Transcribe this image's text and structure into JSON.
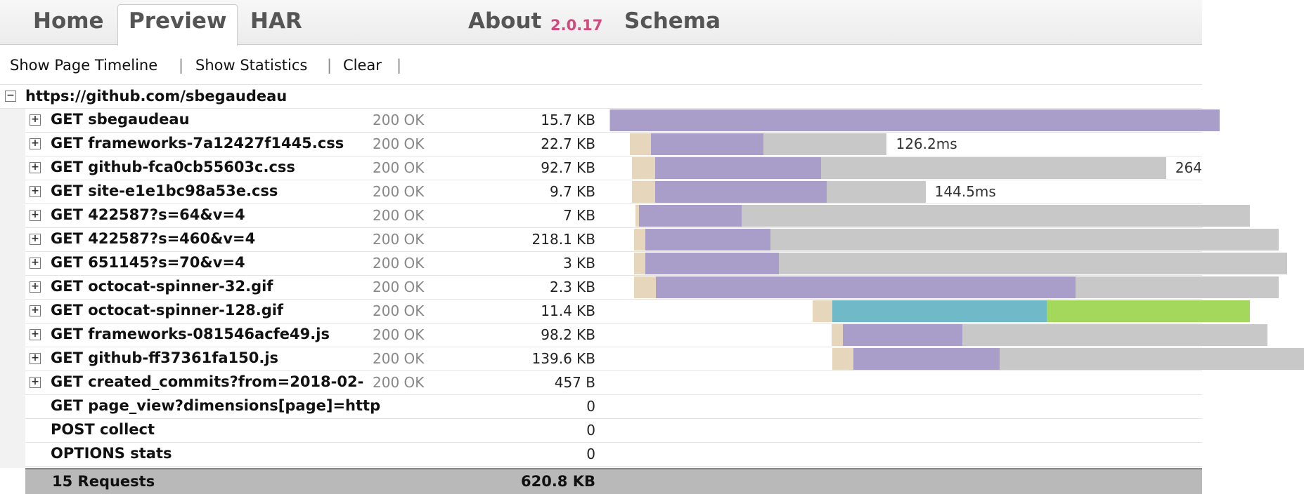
{
  "tabs": [
    "Home",
    "Preview",
    "HAR",
    "About",
    "Schema"
  ],
  "version": "2.0.17",
  "toolbar": {
    "items": [
      "Show Page Timeline",
      "Show Statistics",
      "Clear"
    ],
    "separator": "|"
  },
  "page": {
    "title": "https://github.com/sbegaudeau",
    "requests": [
      {
        "label": "GET sbegaudeau",
        "status": "200 OK",
        "size": "15.7 KB",
        "expandable": true,
        "start": 0,
        "bars": [
          {
            "color": "#e6d6bb",
            "value": 0.4
          },
          {
            "color": "#a99dca",
            "value": 300
          }
        ]
      },
      {
        "label": "GET frameworks-7a12427f1445.css",
        "status": "200 OK",
        "size": "22.7 KB",
        "expandable": true,
        "time_label": "126.2ms",
        "start": 10.2,
        "bars": [
          {
            "color": "#e6d6bb",
            "value": 10.2
          },
          {
            "color": "#a99dca",
            "value": 55.4
          },
          {
            "color": "#c8c8c8",
            "value": 60.7
          }
        ]
      },
      {
        "label": "GET github-fca0cb55603c.css",
        "status": "200 OK",
        "size": "92.7 KB",
        "expandable": true,
        "time_label": "264",
        "start": 10.9,
        "bars": [
          {
            "color": "#e6d6bb",
            "value": 11.7
          },
          {
            "color": "#a99dca",
            "value": 81.4
          },
          {
            "color": "#c8c8c8",
            "value": 170
          }
        ]
      },
      {
        "label": "GET site-e1e1bc98a53e.css",
        "status": "200 OK",
        "size": "9.7 KB",
        "expandable": true,
        "time_label": "144.5ms",
        "start": 10.9,
        "bars": [
          {
            "color": "#e6d6bb",
            "value": 11.7
          },
          {
            "color": "#a99dca",
            "value": 84.4
          },
          {
            "color": "#c8c8c8",
            "value": 48.6
          }
        ]
      },
      {
        "label": "GET 422587?s=64&v=4",
        "status": "200 OK",
        "size": "7 KB",
        "expandable": true,
        "start": 12.8,
        "bars": [
          {
            "color": "#e6d6bb",
            "value": 1.9
          },
          {
            "color": "#a99dca",
            "value": 50.5
          },
          {
            "color": "#c8c8c8",
            "value": 250
          }
        ]
      },
      {
        "label": "GET 422587?s=460&v=4",
        "status": "200 OK",
        "size": "218.1 KB",
        "expandable": true,
        "start": 12.1,
        "bars": [
          {
            "color": "#e6d6bb",
            "value": 5.7
          },
          {
            "color": "#a99dca",
            "value": 61.5
          },
          {
            "color": "#c8c8c8",
            "value": 250
          }
        ]
      },
      {
        "label": "GET 651145?s=70&v=4",
        "status": "200 OK",
        "size": "3 KB",
        "expandable": true,
        "start": 12.1,
        "bars": [
          {
            "color": "#e6d6bb",
            "value": 5.7
          },
          {
            "color": "#a99dca",
            "value": 65.6
          },
          {
            "color": "#c8c8c8",
            "value": 250
          }
        ]
      },
      {
        "label": "GET octocat-spinner-32.gif",
        "status": "200 OK",
        "size": "2.3 KB",
        "expandable": true,
        "start": 12.1,
        "bars": [
          {
            "color": "#e6d6bb",
            "value": 10.6
          },
          {
            "color": "#a99dca",
            "value": 206.6
          },
          {
            "color": "#c8c8c8",
            "value": 100
          }
        ]
      },
      {
        "label": "GET octocat-spinner-128.gif",
        "status": "200 OK",
        "size": "11.4 KB",
        "expandable": true,
        "start": 99.9,
        "bars": [
          {
            "color": "#e6d6bb",
            "value": 9.8
          },
          {
            "color": "#6fb9c8",
            "value": 105.6
          },
          {
            "color": "#a4d85c",
            "value": 100
          }
        ]
      },
      {
        "label": "GET frameworks-081546acfe49.js",
        "status": "200 OK",
        "size": "98.2 KB",
        "expandable": true,
        "start": 109.3,
        "bars": [
          {
            "color": "#e6d6bb",
            "value": 5.7
          },
          {
            "color": "#a99dca",
            "value": 58.8
          },
          {
            "color": "#c8c8c8",
            "value": 150
          }
        ]
      },
      {
        "label": "GET github-ff37361fa150.js",
        "status": "200 OK",
        "size": "139.6 KB",
        "expandable": true,
        "start": 109.7,
        "bars": [
          {
            "color": "#e6d6bb",
            "value": 10.2
          },
          {
            "color": "#a99dca",
            "value": 72
          },
          {
            "color": "#c8c8c8",
            "value": 150
          }
        ]
      },
      {
        "label": "GET created_commits?from=2018-02-",
        "status": "200 OK",
        "size": "457 B",
        "expandable": true
      },
      {
        "label": "GET page_view?dimensions[page]=http",
        "size": "0",
        "expandable": false
      },
      {
        "label": "POST collect",
        "size": "0",
        "expandable": false
      },
      {
        "label": "OPTIONS stats",
        "size": "0",
        "expandable": false
      }
    ],
    "summary": {
      "count": "15 Requests",
      "size": "620.8 KB"
    }
  }
}
